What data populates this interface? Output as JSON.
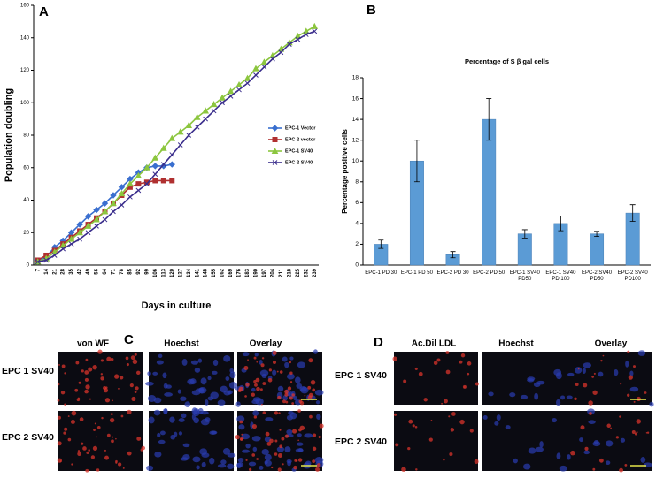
{
  "chart_data": [
    {
      "type": "line",
      "label": "A",
      "ylabel": "Population doubling",
      "xlabel": "Days in culture",
      "categories": [
        "7",
        "14",
        "21",
        "28",
        "35",
        "42",
        "49",
        "56",
        "64",
        "71",
        "78",
        "85",
        "92",
        "99",
        "106",
        "113",
        "120",
        "127",
        "134",
        "141",
        "148",
        "155",
        "162",
        "169",
        "176",
        "183",
        "190",
        "197",
        "204",
        "211",
        "218",
        "225",
        "232",
        "239"
      ],
      "ylim": [
        0,
        160
      ],
      "yticks": [
        0,
        20,
        40,
        60,
        80,
        100,
        120,
        140,
        160
      ],
      "legend": "right",
      "series": [
        {
          "name": "EPC-1 Vector",
          "color": "#3a6fcf",
          "marker": "diamond",
          "values": [
            2,
            5,
            11,
            15,
            20,
            25,
            30,
            34,
            38,
            43,
            48,
            53,
            57,
            60,
            61,
            61,
            62,
            null,
            null,
            null,
            null,
            null,
            null,
            null,
            null,
            null,
            null,
            null,
            null,
            null,
            null,
            null,
            null,
            null
          ]
        },
        {
          "name": "EPC-2 vector",
          "color": "#b03030",
          "marker": "square",
          "values": [
            3,
            6,
            9,
            13,
            17,
            21,
            25,
            29,
            33,
            38,
            43,
            48,
            50,
            51,
            52,
            52,
            52,
            null,
            null,
            null,
            null,
            null,
            null,
            null,
            null,
            null,
            null,
            null,
            null,
            null,
            null,
            null,
            null,
            null
          ]
        },
        {
          "name": "EPC-1 SV40",
          "color": "#8cc63f",
          "marker": "triangle",
          "values": [
            2,
            4,
            8,
            12,
            16,
            20,
            24,
            28,
            33,
            38,
            44,
            50,
            55,
            60,
            66,
            72,
            78,
            82,
            86,
            91,
            95,
            99,
            103,
            107,
            111,
            115,
            121,
            125,
            129,
            133,
            137,
            141,
            144,
            147
          ]
        },
        {
          "name": "EPC-2 SV40",
          "color": "#3a2d8c",
          "marker": "cross",
          "values": [
            2,
            3,
            6,
            10,
            13,
            16,
            20,
            24,
            28,
            33,
            37,
            42,
            46,
            50,
            56,
            62,
            68,
            74,
            80,
            85,
            90,
            95,
            100,
            104,
            108,
            112,
            117,
            122,
            127,
            131,
            136,
            139,
            142,
            144
          ]
        }
      ]
    },
    {
      "type": "bar",
      "label": "B",
      "title": "Percentage of S β gal cells",
      "ylabel": "Percentage positive cells",
      "color": "#5b9bd5",
      "categories": [
        "EPC-1 PD 30",
        "EPC-1 PD 50",
        "EPC-2 PD 30",
        "EPC-2 PD 50",
        "EPC-1 SV40 PD50",
        "EPC-1 SV40 PD 100",
        "EPC-2 SV40 PD50",
        "EPC-2  SV40 PD100"
      ],
      "values": [
        2,
        10,
        1,
        14,
        3,
        4,
        3,
        5
      ],
      "errors": [
        0.4,
        2,
        0.3,
        2,
        0.4,
        0.7,
        0.25,
        0.8
      ],
      "ylim": [
        0,
        18
      ],
      "yticks": [
        0,
        2,
        4,
        6,
        8,
        10,
        12,
        14,
        16,
        18
      ]
    }
  ],
  "panels": [
    {
      "label": "C",
      "columns": [
        "von WF",
        "Hoechst",
        "Overlay"
      ],
      "rows": [
        "EPC 1 SV40",
        "EPC 2 SV40"
      ]
    },
    {
      "label": "D",
      "columns": [
        "Ac.Dil LDL",
        "Hoechst",
        "Overlay"
      ],
      "rows": [
        "EPC 1 SV40",
        "EPC 2 SV40"
      ]
    }
  ]
}
